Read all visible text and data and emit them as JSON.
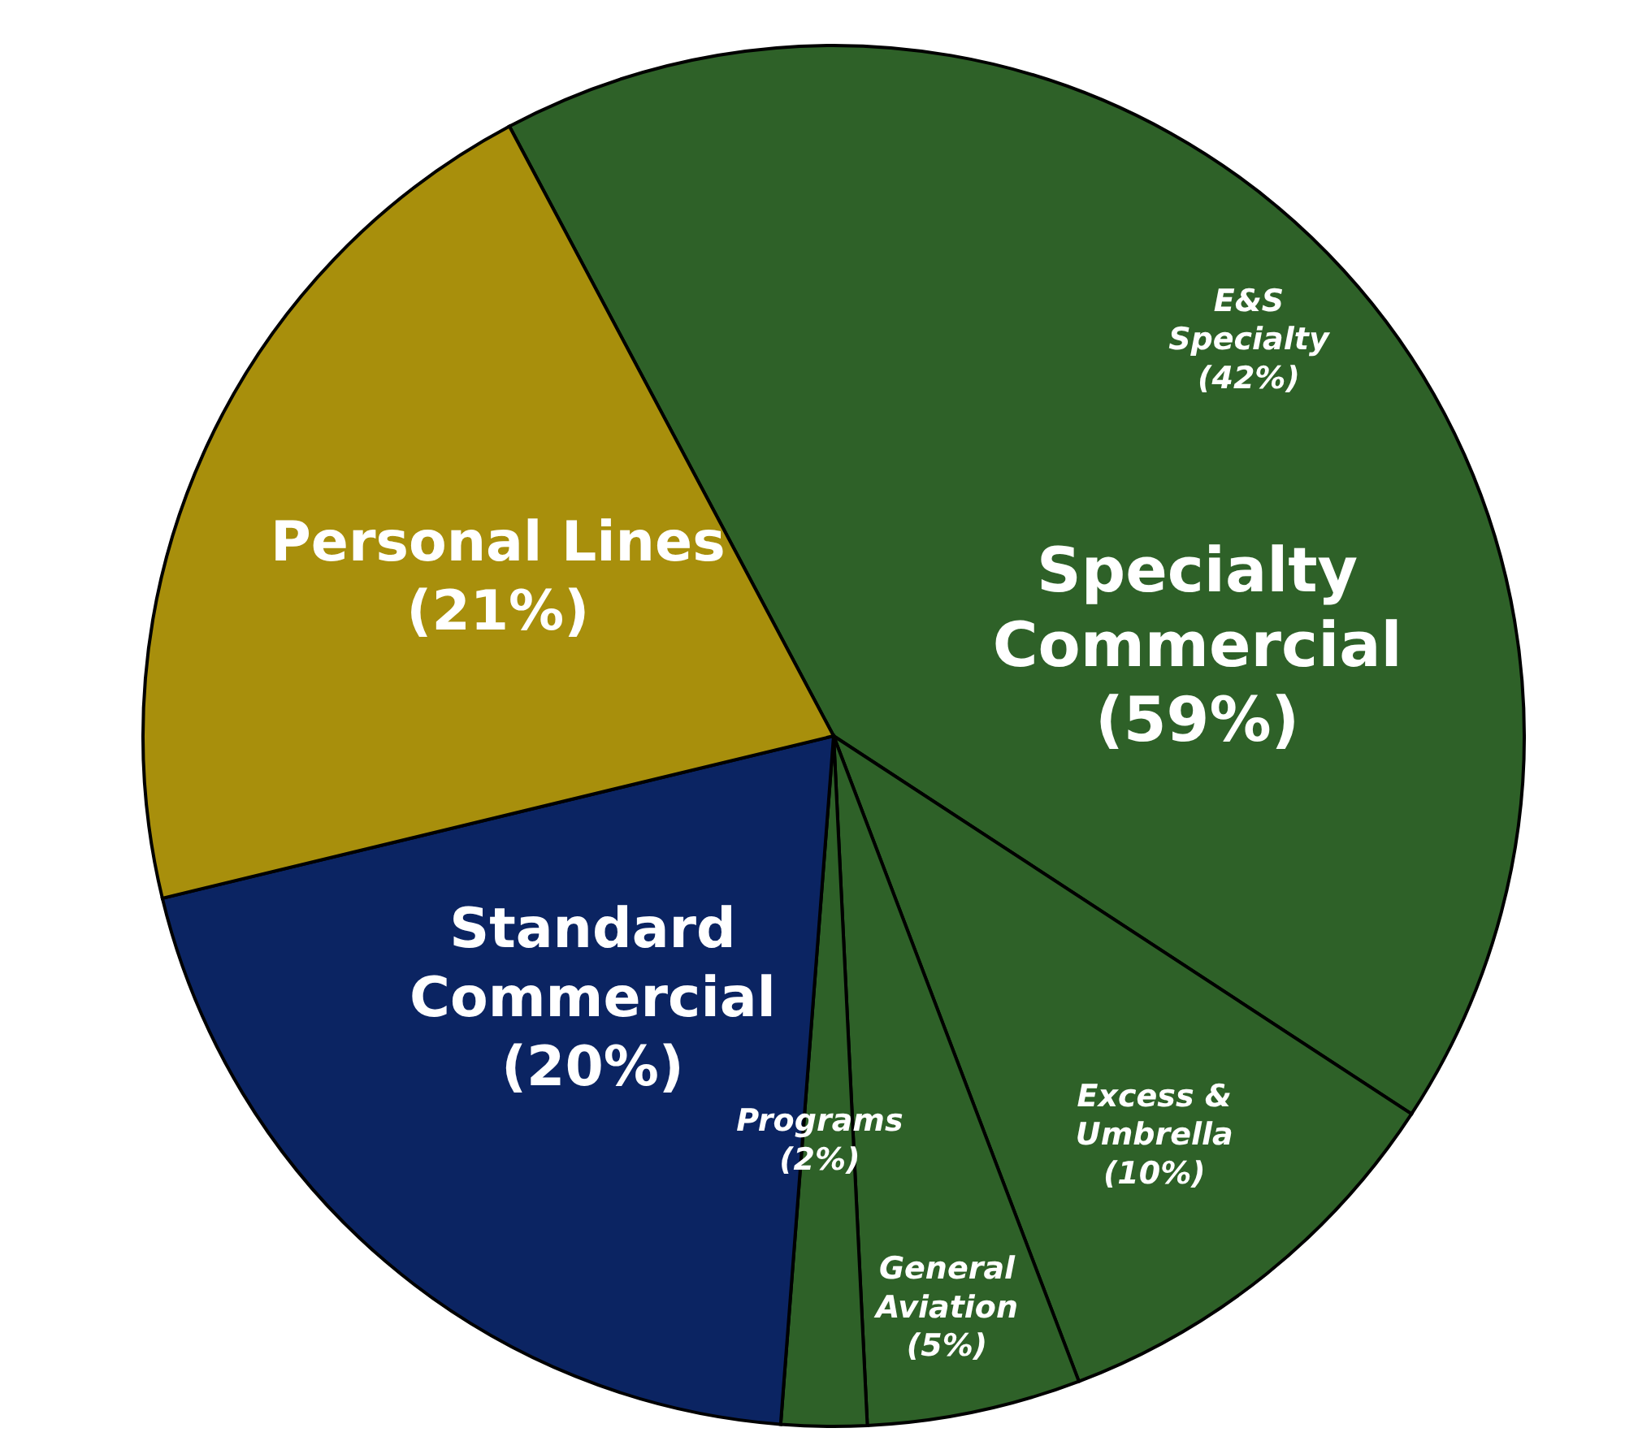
{
  "chart_data": {
    "type": "pie",
    "categories": [
      "E&S Specialty",
      "Excess & Umbrella",
      "General Aviation",
      "Programs",
      "Standard Commercial",
      "Personal Lines"
    ],
    "values": [
      42,
      10,
      5,
      2,
      20,
      21
    ],
    "value_labels": [
      "(42%)",
      "(10%)",
      "(5%)",
      "(2%)",
      "(20%)",
      "(21%)"
    ],
    "colors": [
      "#2e6128",
      "#2e6128",
      "#2e6128",
      "#2e6128",
      "#0b2462",
      "#a88f0c"
    ],
    "annotations": [
      "Specialty Commercial (59%)"
    ],
    "legend": false
  }
}
